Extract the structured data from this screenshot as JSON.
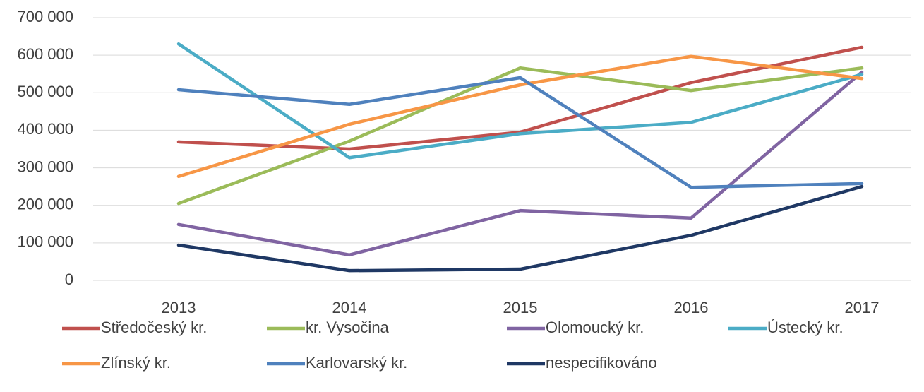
{
  "chart_data": {
    "type": "line",
    "categories": [
      "2013",
      "2014",
      "2015",
      "2016",
      "2017"
    ],
    "series": [
      {
        "name": "Středočeský kr.",
        "color": "#c0504d",
        "values": [
          369000,
          350000,
          395000,
          527000,
          621000
        ]
      },
      {
        "name": "kr. Vysočina",
        "color": "#9bbb59",
        "values": [
          205000,
          371000,
          566000,
          506000,
          566000
        ]
      },
      {
        "name": "Olomoucký kr.",
        "color": "#8064a2",
        "values": [
          149000,
          68000,
          186000,
          166000,
          555000
        ]
      },
      {
        "name": "Ústecký kr.",
        "color": "#4bacc6",
        "values": [
          630000,
          327000,
          391000,
          421000,
          549000
        ]
      },
      {
        "name": "Zlínský kr.",
        "color": "#f79646",
        "values": [
          277000,
          416000,
          521000,
          597000,
          538000
        ]
      },
      {
        "name": "Karlovarský kr.",
        "color": "#4f81bd",
        "values": [
          508000,
          469000,
          540000,
          248000,
          258000
        ]
      },
      {
        "name": "nespecifikováno",
        "color": "#1f3864",
        "values": [
          94000,
          26000,
          30000,
          120000,
          250000
        ]
      }
    ],
    "ylim": [
      0,
      700000
    ],
    "yticks": [
      0,
      {
        "value": 100000,
        "label": "100 000"
      },
      {
        "value": 200000,
        "label": "200 000"
      },
      {
        "value": 300000,
        "label": "300 000"
      },
      {
        "value": 400000,
        "label": "400 000"
      },
      {
        "value": 500000,
        "label": "500 000"
      },
      {
        "value": 600000,
        "label": "600 000"
      },
      {
        "value": 700000,
        "label": "700 000"
      }
    ],
    "grid": true,
    "legend": "bottom"
  }
}
